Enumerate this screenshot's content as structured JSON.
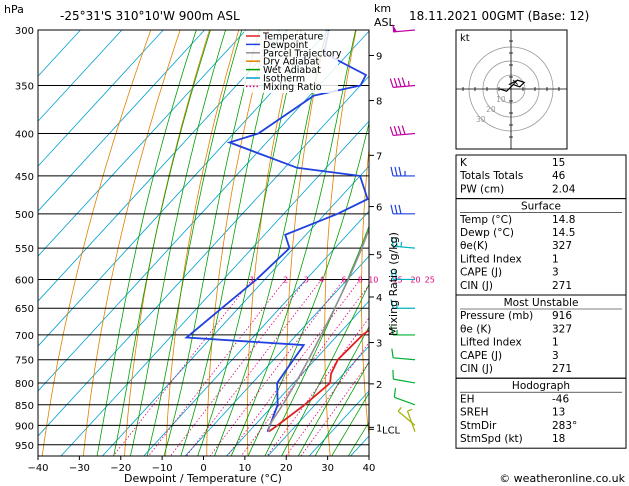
{
  "header": {
    "p_unit": "hPa",
    "location": "-25°31'S 310°10'W 900m ASL",
    "km_unit": "km",
    "asl_unit": "ASL",
    "datetime": "18.11.2021 00GMT (Base: 12)"
  },
  "footer": {
    "copyright": "© weatheronline.co.uk"
  },
  "chart_data": {
    "type": "line",
    "chart_kind": "skew-T log-P diagram",
    "xlabel": "Dewpoint / Temperature (°C)",
    "ylabel_right": "Mixing Ratio (g/kg)",
    "x_ticks": [
      -40,
      -30,
      -20,
      -10,
      0,
      10,
      20,
      30,
      40
    ],
    "x_range": [
      -40,
      40
    ],
    "y_scale": "log",
    "y_range": [
      300,
      980
    ],
    "pressure_ticks": [
      300,
      350,
      400,
      450,
      500,
      550,
      600,
      650,
      700,
      750,
      800,
      850,
      900,
      950
    ],
    "km_ticks": [
      {
        "label": "9",
        "p": 322
      },
      {
        "label": "8",
        "p": 365
      },
      {
        "label": "7",
        "p": 425
      },
      {
        "label": "6",
        "p": 490
      },
      {
        "label": "5",
        "p": 560
      },
      {
        "label": "4",
        "p": 630
      },
      {
        "label": "3",
        "p": 715
      },
      {
        "label": "2",
        "p": 802
      },
      {
        "label": "1",
        "p": 905
      }
    ],
    "lcl_label": "LCL",
    "lcl_p": 910,
    "mixing_ratio_labels": [
      "1",
      "2",
      "3",
      "4",
      "6",
      "8",
      "10",
      "15",
      "20",
      "25"
    ],
    "mixing_ratio_values": [
      1,
      2,
      3,
      4,
      6,
      8,
      10,
      15,
      20,
      25
    ],
    "mixing_ratio_label_p": 600,
    "legend": [
      {
        "name": "Temperature",
        "color": "#e02020",
        "dash": "solid"
      },
      {
        "name": "Dewpoint",
        "color": "#2040e0",
        "dash": "solid"
      },
      {
        "name": "Parcel Trajectory",
        "color": "#909090",
        "dash": "solid"
      },
      {
        "name": "Dry Adiabat",
        "color": "#e08000",
        "dash": "solid"
      },
      {
        "name": "Wet Adiabat",
        "color": "#00a000",
        "dash": "solid"
      },
      {
        "name": "Isotherm",
        "color": "#00a0d0",
        "dash": "solid"
      },
      {
        "name": "Mixing Ratio",
        "color": "#e0007a",
        "dash": "dotted"
      }
    ],
    "series": [
      {
        "name": "Temperature",
        "color": "#e02020",
        "points": [
          {
            "p": 916,
            "t": 14.8
          },
          {
            "p": 900,
            "t": 15.5
          },
          {
            "p": 850,
            "t": 17.5
          },
          {
            "p": 800,
            "t": 18.8
          },
          {
            "p": 780,
            "t": 17.0
          },
          {
            "p": 750,
            "t": 15.5
          },
          {
            "p": 700,
            "t": 16.0
          },
          {
            "p": 680,
            "t": 17.0
          },
          {
            "p": 650,
            "t": 14.5
          },
          {
            "p": 600,
            "t": 10.0
          },
          {
            "p": 550,
            "t": 6.5
          },
          {
            "p": 500,
            "t": 0.5
          },
          {
            "p": 450,
            "t": -5.5
          },
          {
            "p": 400,
            "t": -13.5
          },
          {
            "p": 350,
            "t": -23.5
          },
          {
            "p": 300,
            "t": -34.0
          }
        ]
      },
      {
        "name": "Dewpoint",
        "color": "#2040e0",
        "points": [
          {
            "p": 916,
            "t": 14.5
          },
          {
            "p": 850,
            "t": 11.0
          },
          {
            "p": 800,
            "t": 6.0
          },
          {
            "p": 720,
            "t": 4.0
          },
          {
            "p": 705,
            "t": -26.0
          },
          {
            "p": 650,
            "t": -24.0
          },
          {
            "p": 600,
            "t": -22.0
          },
          {
            "p": 550,
            "t": -21.0
          },
          {
            "p": 530,
            "t": -25.0
          },
          {
            "p": 500,
            "t": -17.0
          },
          {
            "p": 480,
            "t": -13.0
          },
          {
            "p": 450,
            "t": -20.0
          },
          {
            "p": 440,
            "t": -37.0
          },
          {
            "p": 410,
            "t": -59.0
          },
          {
            "p": 400,
            "t": -54.0
          },
          {
            "p": 360,
            "t": -49.0
          },
          {
            "p": 350,
            "t": -40.0
          },
          {
            "p": 340,
            "t": -41.0
          },
          {
            "p": 320,
            "t": -56.0
          },
          {
            "p": 300,
            "t": -60.0
          }
        ]
      },
      {
        "name": "Parcel Trajectory",
        "color": "#909090",
        "points": [
          {
            "p": 916,
            "t": 14.8
          },
          {
            "p": 900,
            "t": 13.5
          },
          {
            "p": 850,
            "t": 12.2
          },
          {
            "p": 800,
            "t": 10.5
          },
          {
            "p": 750,
            "t": 8.4
          },
          {
            "p": 700,
            "t": 6.0
          },
          {
            "p": 650,
            "t": 3.3
          },
          {
            "p": 600,
            "t": 0.2
          },
          {
            "p": 550,
            "t": -3.5
          },
          {
            "p": 500,
            "t": -8.0
          },
          {
            "p": 450,
            "t": -13.5
          },
          {
            "p": 400,
            "t": -20.5
          },
          {
            "p": 350,
            "t": -29.0
          },
          {
            "p": 300,
            "t": -39.5
          }
        ]
      }
    ],
    "wind_barbs": [
      {
        "p": 916,
        "dir": 340,
        "spd": 5
      },
      {
        "p": 900,
        "dir": 310,
        "spd": 5
      },
      {
        "p": 850,
        "dir": 290,
        "spd": 10
      },
      {
        "p": 800,
        "dir": 280,
        "spd": 10
      },
      {
        "p": 750,
        "dir": 275,
        "spd": 10
      },
      {
        "p": 700,
        "dir": 270,
        "spd": 15
      },
      {
        "p": 650,
        "dir": 270,
        "spd": 15
      },
      {
        "p": 600,
        "dir": 270,
        "spd": 20
      },
      {
        "p": 550,
        "dir": 275,
        "spd": 25
      },
      {
        "p": 500,
        "dir": 270,
        "spd": 30
      },
      {
        "p": 450,
        "dir": 270,
        "spd": 35
      },
      {
        "p": 400,
        "dir": 265,
        "spd": 40
      },
      {
        "p": 350,
        "dir": 265,
        "spd": 45
      },
      {
        "p": 300,
        "dir": 265,
        "spd": 50
      }
    ],
    "hodograph": {
      "label": "kt",
      "ring_labels": [
        "10",
        "20",
        "30"
      ],
      "points": [
        [
          -5,
          0
        ],
        [
          -2,
          -1
        ],
        [
          1,
          2
        ],
        [
          4,
          1
        ],
        [
          6,
          3
        ],
        [
          3,
          4
        ],
        [
          -1,
          2
        ]
      ],
      "storm_motion": [
        2,
        3
      ]
    }
  },
  "indices": {
    "top": [
      {
        "label": "K",
        "value": "15"
      },
      {
        "label": "Totals Totals",
        "value": "46"
      },
      {
        "label": "PW (cm)",
        "value": "2.04"
      }
    ],
    "surface": {
      "title": "Surface",
      "rows": [
        {
          "label": "Temp (°C)",
          "value": "14.8"
        },
        {
          "label": "Dewp (°C)",
          "value": "14.5"
        },
        {
          "label": "θe(K)",
          "value": "327"
        },
        {
          "label": "Lifted Index",
          "value": "1"
        },
        {
          "label": "CAPE (J)",
          "value": "3"
        },
        {
          "label": "CIN (J)",
          "value": "271"
        }
      ]
    },
    "most_unstable": {
      "title": "Most Unstable",
      "rows": [
        {
          "label": "Pressure (mb)",
          "value": "916"
        },
        {
          "label": "θe (K)",
          "value": "327"
        },
        {
          "label": "Lifted Index",
          "value": "1"
        },
        {
          "label": "CAPE (J)",
          "value": "3"
        },
        {
          "label": "CIN (J)",
          "value": "271"
        }
      ]
    },
    "hodograph": {
      "title": "Hodograph",
      "rows": [
        {
          "label": "EH",
          "value": "-46"
        },
        {
          "label": "SREH",
          "value": "13"
        },
        {
          "label": "StmDir",
          "value": "283°"
        },
        {
          "label": "StmSpd (kt)",
          "value": "18"
        }
      ]
    }
  }
}
